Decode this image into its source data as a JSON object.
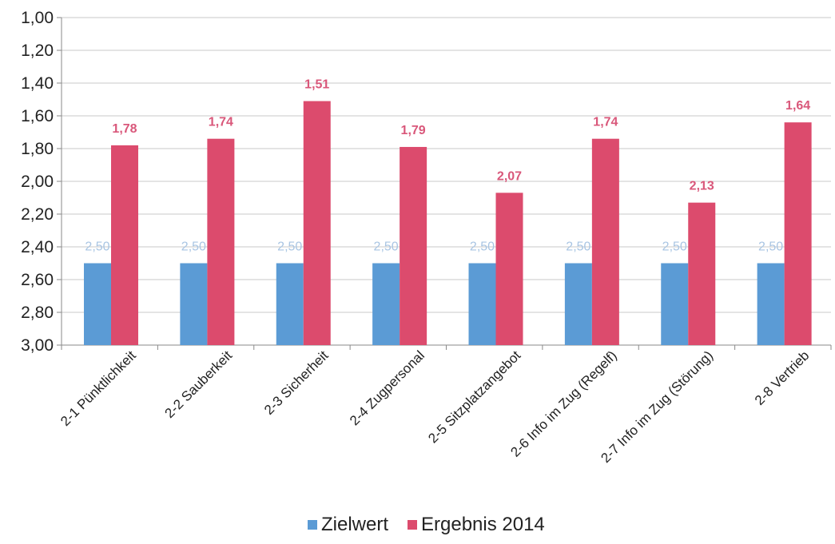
{
  "chart_data": {
    "type": "bar",
    "categories": [
      "2-1 Pünktlichkeit",
      "2-2 Sauberkeit",
      "2-3 Sicherheit",
      "2-4 Zugpersonal",
      "2-5 Sitzplatzangebot",
      "2-6 Info im Zug (Regelf)",
      "2-7 Info im Zug (Störung)",
      "2-8 Vertrieb"
    ],
    "series": [
      {
        "name": "Zielwert",
        "values": [
          2.5,
          2.5,
          2.5,
          2.5,
          2.5,
          2.5,
          2.5,
          2.5
        ],
        "labels": [
          "2,50",
          "2,50",
          "2,50",
          "2,50",
          "2,50",
          "2,50",
          "2,50",
          "2,50"
        ],
        "color": "#5b9bd5",
        "label_color": "#a9c5e3"
      },
      {
        "name": "Ergebnis 2014",
        "values": [
          1.78,
          1.74,
          1.51,
          1.79,
          2.07,
          1.74,
          2.13,
          1.64
        ],
        "labels": [
          "1,78",
          "1,74",
          "1,51",
          "1,79",
          "2,07",
          "1,74",
          "2,13",
          "1,64"
        ],
        "color": "#dc4b6d",
        "label_color": "#d9577a"
      }
    ],
    "y_axis": {
      "range": [
        1.0,
        3.0
      ],
      "reversed": true,
      "ticks": [
        "1,00",
        "1,20",
        "1,40",
        "1,60",
        "1,80",
        "2,00",
        "2,20",
        "2,40",
        "2,60",
        "2,80",
        "3,00"
      ]
    },
    "grid": true,
    "legend": {
      "position": "bottom",
      "entries": [
        "Zielwert",
        "Ergebnis 2014"
      ]
    },
    "bar_baseline": 3.0
  }
}
